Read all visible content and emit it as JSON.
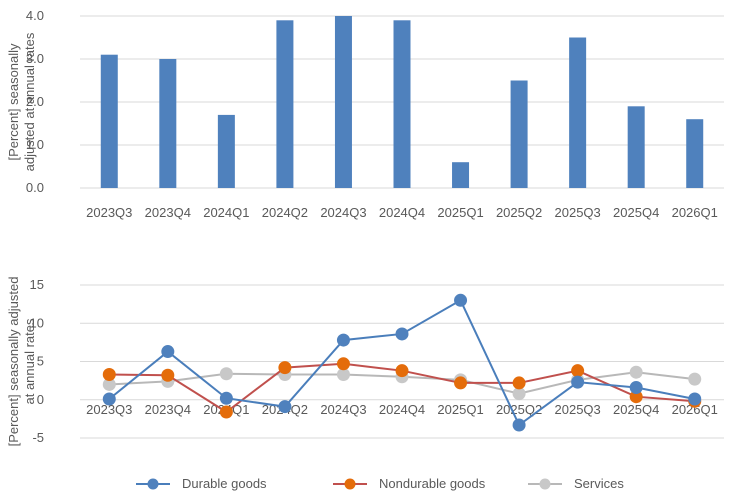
{
  "colors": {
    "bar": "#4f81bd",
    "durable": "#4a7ebb",
    "nondurable": "#c0504d",
    "services": "#b8b8b8",
    "dot_durable": "#4f81bd",
    "dot_nondurable": "#e46c0a",
    "dot_services": "#c8c8c8"
  },
  "chart_data": [
    {
      "type": "bar",
      "ylabel": "[Percent] seasonally adjusted at annual rates",
      "ylabel_lines": [
        "[Percent] seasonally",
        "adjusted at annual rates"
      ],
      "categories": [
        "2023Q3",
        "2023Q4",
        "2024Q1",
        "2024Q2",
        "2024Q3",
        "2024Q4",
        "2025Q1",
        "2025Q2",
        "2025Q3",
        "2025Q4",
        "2026Q1"
      ],
      "values": [
        3.1,
        3.0,
        1.7,
        3.9,
        4.0,
        3.9,
        0.6,
        2.5,
        3.5,
        1.9,
        1.6
      ],
      "ylim": [
        0,
        4
      ],
      "yticks": [
        "0.0",
        "1.0",
        "2.0",
        "3.0",
        "4.0"
      ],
      "ytick_values": [
        0,
        1,
        2,
        3,
        4
      ],
      "grid": true
    },
    {
      "type": "line",
      "ylabel": "[Percent] seasonally adjusted at annual rates",
      "ylabel_lines": [
        "[Percent] seasonally adjusted",
        "at annual rates"
      ],
      "categories": [
        "2023Q3",
        "2023Q4",
        "2024Q1",
        "2024Q2",
        "2024Q3",
        "2024Q4",
        "2025Q1",
        "2025Q2",
        "2025Q3",
        "2025Q4",
        "2026Q1"
      ],
      "series": [
        {
          "name": "Durable goods",
          "values": [
            0.1,
            6.3,
            0.2,
            -0.9,
            7.8,
            8.6,
            13.0,
            -3.3,
            2.3,
            1.6,
            0.1
          ]
        },
        {
          "name": "Nondurable goods",
          "values": [
            3.3,
            3.2,
            -1.6,
            4.2,
            4.7,
            3.8,
            2.2,
            2.2,
            3.8,
            0.4,
            -0.2
          ]
        },
        {
          "name": "Services",
          "values": [
            2.0,
            2.4,
            3.4,
            3.3,
            3.3,
            3.0,
            2.6,
            0.8,
            2.6,
            3.6,
            2.7
          ]
        }
      ],
      "ylim": [
        -5,
        15
      ],
      "yticks": [
        "-5",
        "0",
        "5",
        "10",
        "15"
      ],
      "ytick_values": [
        -5,
        0,
        5,
        10,
        15
      ],
      "legend": "bottom",
      "grid": true
    }
  ]
}
